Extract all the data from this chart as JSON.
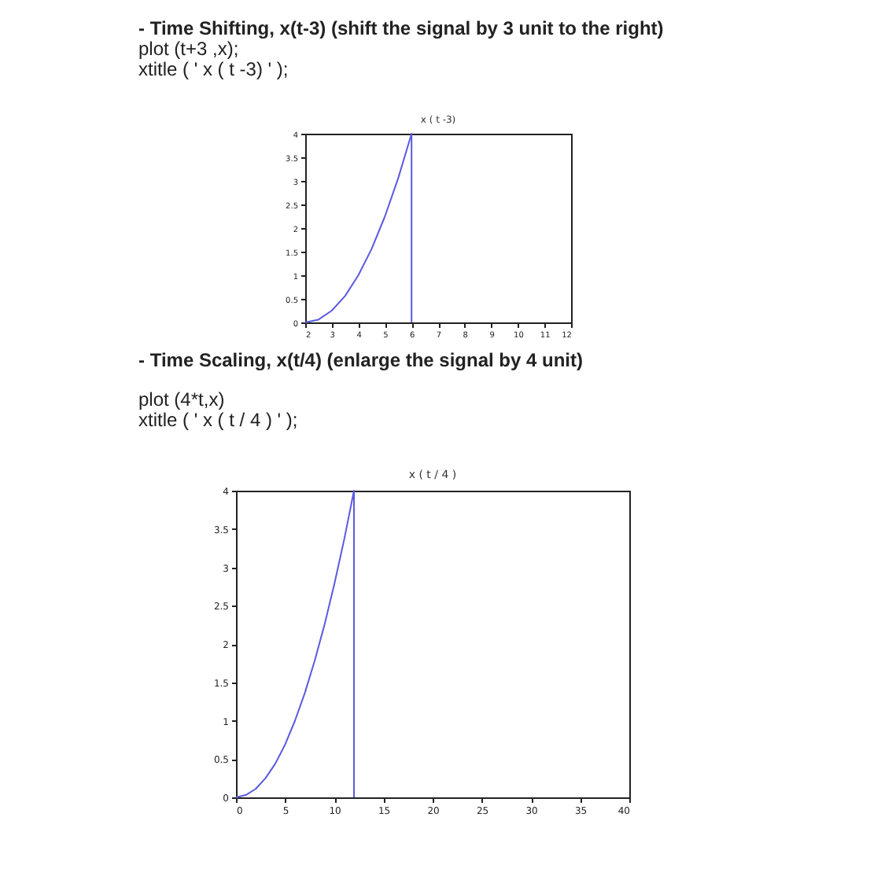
{
  "chart_data": [
    {
      "type": "line",
      "title": "x ( t -3)",
      "annotations": [
        "- Time Shifting, x(t-3) (shift the signal by 3 unit to the right)",
        "plot (t+3 ,x);",
        "xtitle ( ' x ( t -3) ' );"
      ],
      "x": [
        2,
        2.5,
        3,
        3.5,
        4,
        4.5,
        5,
        5.5,
        6,
        6
      ],
      "series": [
        {
          "color": "#5a5ae0",
          "values": [
            0,
            0.06,
            0.25,
            0.56,
            1,
            1.56,
            2.25,
            3.06,
            4,
            0
          ]
        }
      ],
      "xlim": [
        2,
        12
      ],
      "xticks": [
        2,
        3,
        4,
        5,
        6,
        7,
        8,
        9,
        10,
        11,
        12
      ],
      "ylim": [
        0,
        4
      ],
      "yticks": [
        0,
        0.5,
        1,
        1.5,
        2,
        2.5,
        3,
        3.5,
        4
      ],
      "grid": false
    },
    {
      "type": "line",
      "title": "x ( t / 4 )",
      "annotations": [
        "- Time Scaling, x(t/4) (enlarge the signal by 4 unit)",
        "plot (4*t,x)",
        "xtitle ( ' x ( t / 4 ) ' );"
      ],
      "x": [
        0,
        1,
        2,
        3,
        4,
        5,
        6,
        7,
        8,
        9,
        10,
        11,
        12,
        12
      ],
      "series": [
        {
          "color": "#5a5ae0",
          "values": [
            0,
            0.03,
            0.11,
            0.25,
            0.44,
            0.69,
            1,
            1.36,
            1.78,
            2.25,
            2.78,
            3.36,
            4,
            0
          ]
        }
      ],
      "xlim": [
        0,
        40
      ],
      "xticks": [
        0,
        5,
        10,
        15,
        20,
        25,
        30,
        35,
        40
      ],
      "ylim": [
        0,
        4
      ],
      "yticks": [
        0,
        0.5,
        1,
        1.5,
        2,
        2.5,
        3,
        3.5,
        4
      ],
      "grid": false
    }
  ]
}
